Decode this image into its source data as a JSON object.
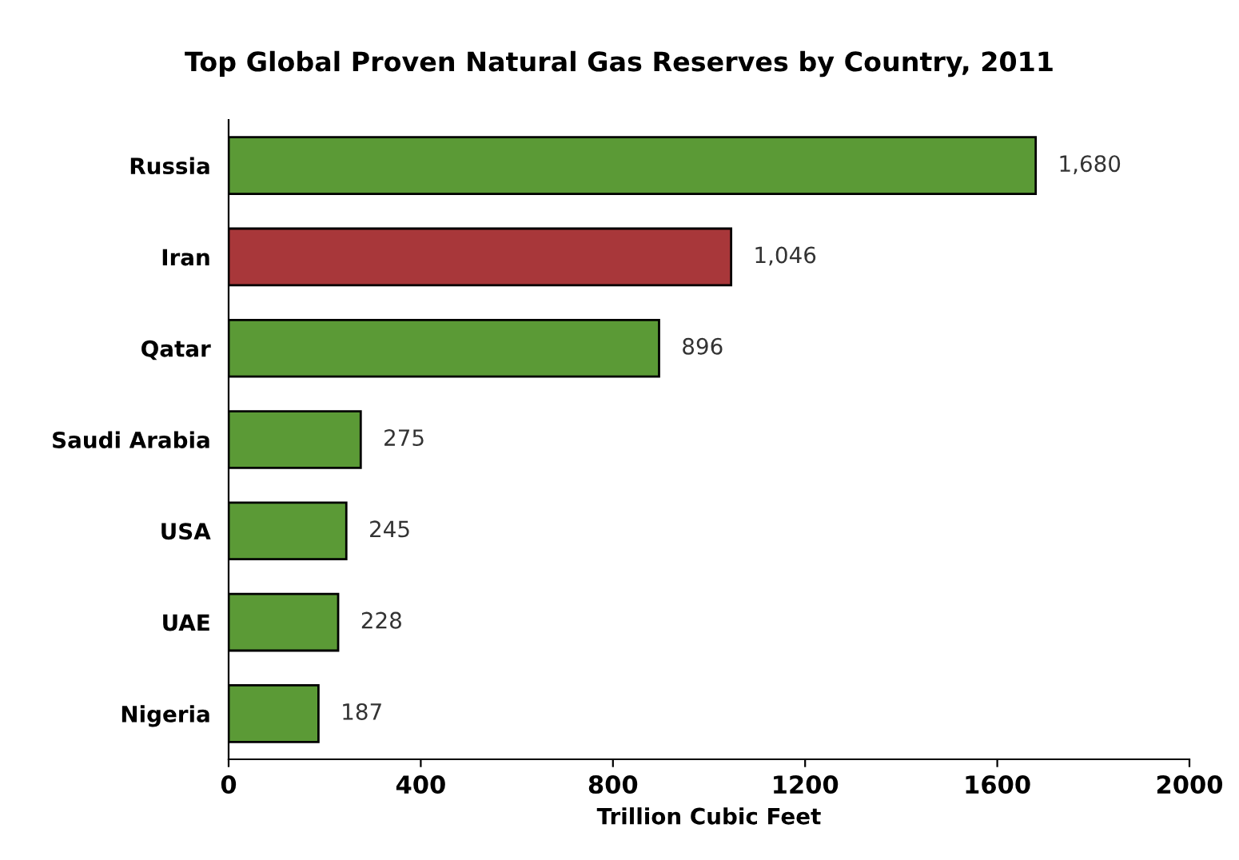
{
  "chart_data": {
    "type": "bar",
    "orientation": "horizontal",
    "title": "Top Global Proven Natural Gas Reserves by Country, 2011",
    "xlabel": "Trillion Cubic Feet",
    "categories": [
      "Russia",
      "Iran",
      "Qatar",
      "Saudi Arabia",
      "USA",
      "UAE",
      "Nigeria"
    ],
    "values": [
      1680,
      1046,
      896,
      275,
      245,
      228,
      187
    ],
    "value_labels": [
      "1,680",
      "1,046",
      "896",
      "275",
      "245",
      "228",
      "187"
    ],
    "colors": [
      "#5b9a36",
      "#a8373a",
      "#5b9a36",
      "#5b9a36",
      "#5b9a36",
      "#5b9a36",
      "#5b9a36"
    ],
    "xlim": [
      0,
      2000
    ],
    "xticks": [
      0,
      400,
      800,
      1200,
      1600,
      2000
    ],
    "grid": false,
    "legend": false
  }
}
